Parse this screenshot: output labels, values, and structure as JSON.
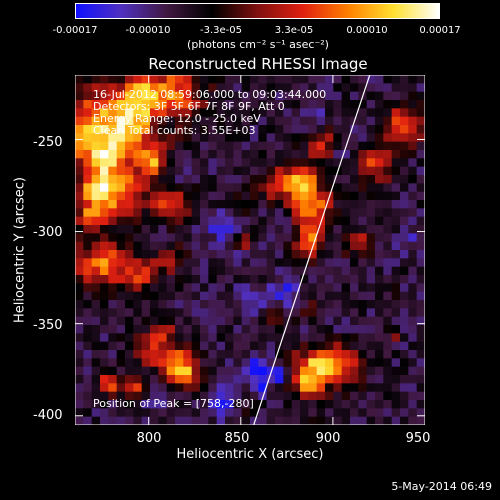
{
  "chart_data": {
    "type": "heatmap",
    "title": "Reconstructed RHESSI Image",
    "xlabel": "Heliocentric X (arcsec)",
    "ylabel": "Heliocentric Y (arcsec)",
    "xlim": [
      760,
      950
    ],
    "ylim": [
      -405,
      -215
    ],
    "x_ticks": [
      "800",
      "850",
      "900",
      "950"
    ],
    "y_ticks": [
      "-250",
      "-300",
      "-350",
      "-400"
    ],
    "colorbar": {
      "range": [
        -0.00017,
        0.00017
      ],
      "tick_labels": [
        "-0.00017",
        "-0.00010",
        "-3.3e-05",
        "3.3e-05",
        "0.00010",
        "0.00017"
      ],
      "units": "(photons cm⁻² s⁻¹ asec⁻²)",
      "colors": [
        "#1010ff",
        "#5030c0",
        "#401840",
        "#000000",
        "#801010",
        "#e02010",
        "#ff8000",
        "#ffe030",
        "#ffffff"
      ]
    },
    "annotations": [
      "16-Jul-2012 08:59:06.000 to 09:03:44.000",
      "Detectors: 3F 5F 6F 7F 8F 9F, Att 0",
      "Energy Range: 12.0 - 25.0 keV",
      "Clean     Total counts: 3.55E+03"
    ],
    "peak_text": "Position of Peak = [758,-280]",
    "peak_position": [
      758,
      -280
    ],
    "limb_line": [
      [
        857,
        -405
      ],
      [
        920,
        -215
      ]
    ]
  },
  "footer": "5-May-2014 06:49"
}
